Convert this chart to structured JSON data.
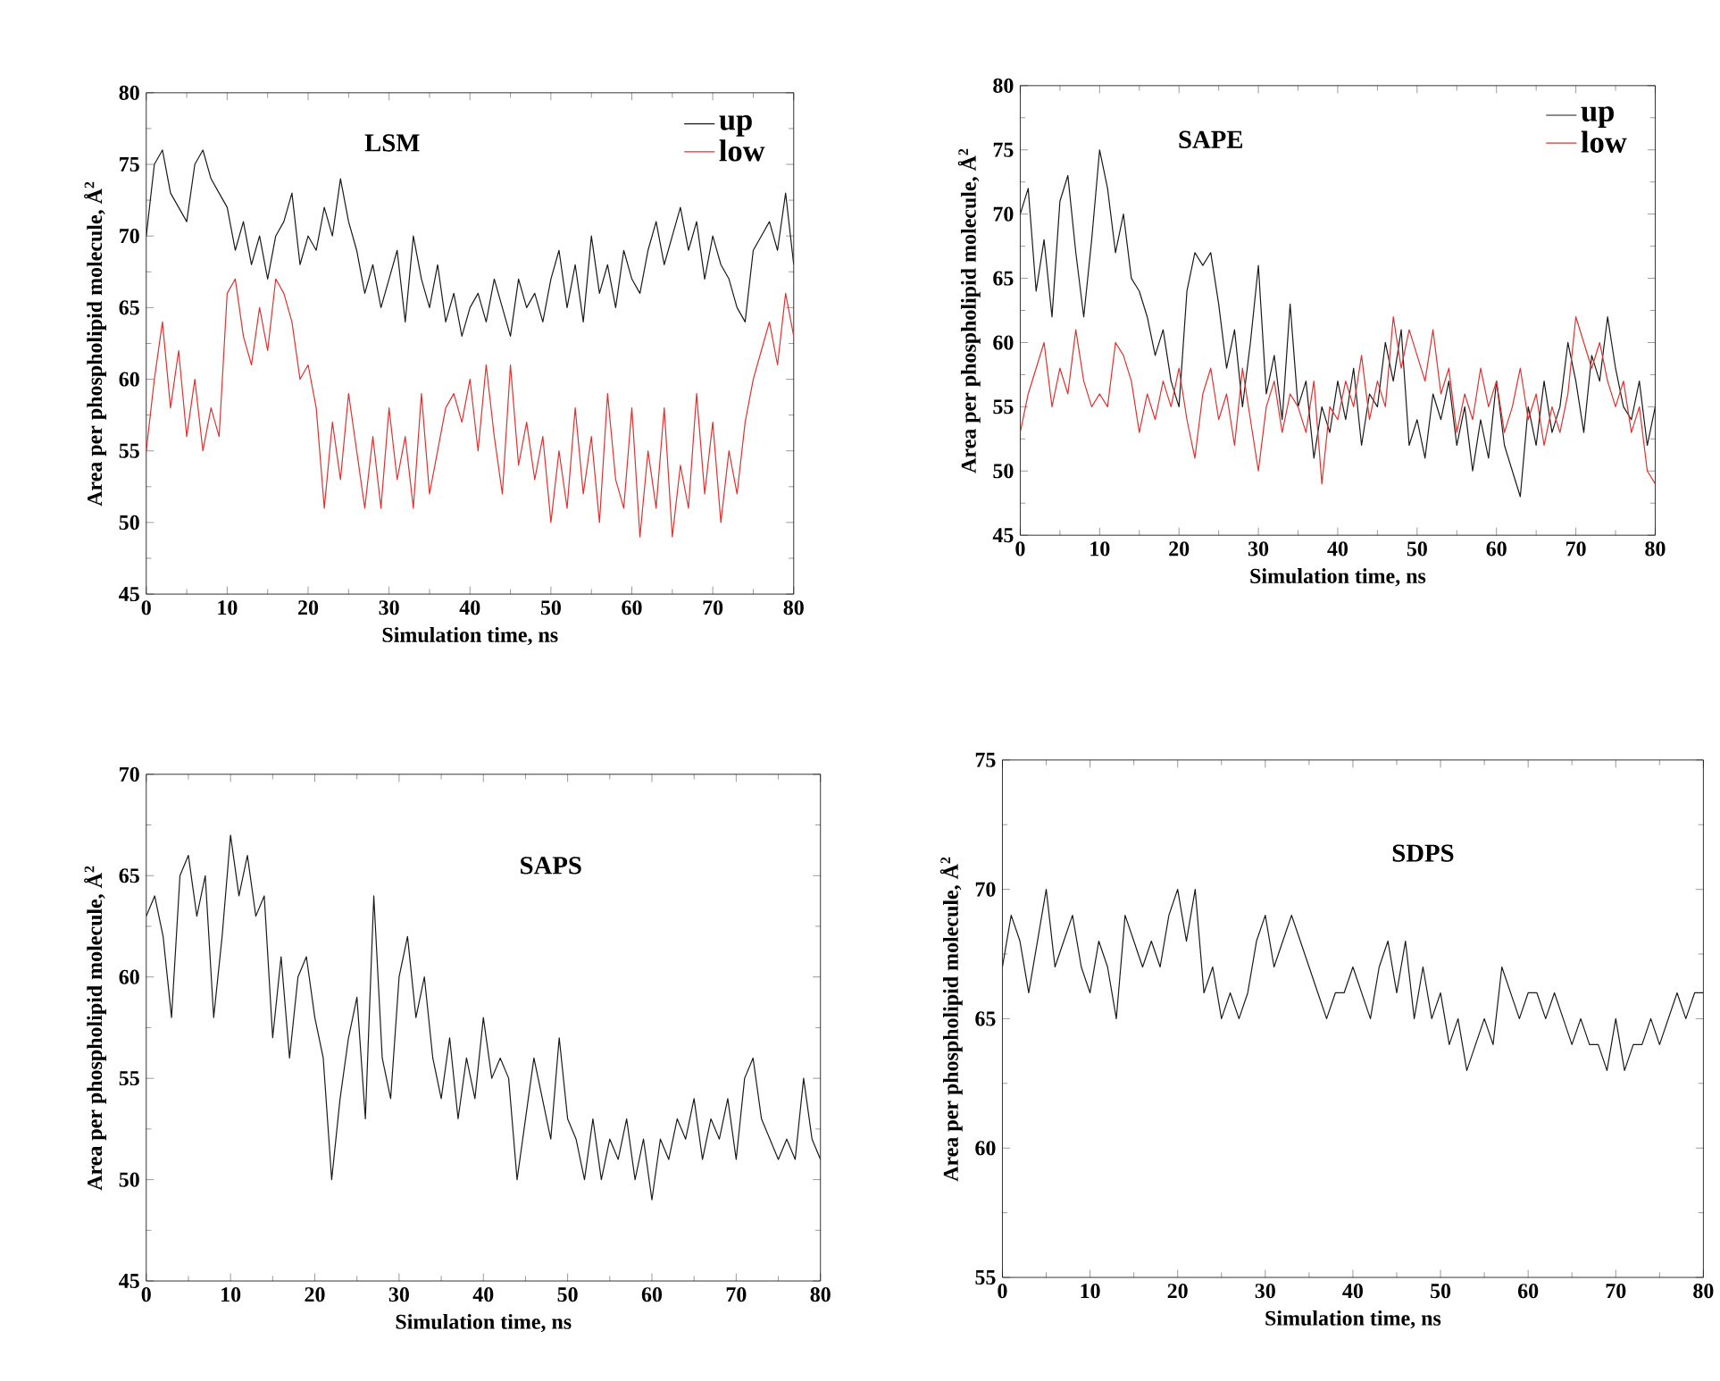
{
  "chart_data": [
    {
      "type": "line",
      "xlabel": "Simulation time, ns",
      "ylabel": "Area per phospholipid molecule, Å$^{2}$",
      "annotations": [
        "LSM"
      ],
      "legend": "top right",
      "xlim": [
        0,
        80
      ],
      "ylim": [
        45,
        80
      ],
      "xticks": [
        0,
        10,
        20,
        30,
        40,
        50,
        60,
        70,
        80
      ],
      "yticks": [
        45,
        50,
        55,
        60,
        65,
        70,
        75,
        80
      ],
      "x": [
        0,
        1,
        2,
        3,
        4,
        5,
        6,
        7,
        8,
        9,
        10,
        11,
        12,
        13,
        14,
        15,
        16,
        17,
        18,
        19,
        20,
        21,
        22,
        23,
        24,
        25,
        26,
        27,
        28,
        29,
        30,
        31,
        32,
        33,
        34,
        35,
        36,
        37,
        38,
        39,
        40,
        41,
        42,
        43,
        44,
        45,
        46,
        47,
        48,
        49,
        50,
        51,
        52,
        53,
        54,
        55,
        56,
        57,
        58,
        59,
        60,
        61,
        62,
        63,
        64,
        65,
        66,
        67,
        68,
        69,
        70,
        71,
        72,
        73,
        74,
        75,
        76,
        77,
        78,
        79,
        80
      ],
      "series": [
        {
          "name": "up",
          "color": "#1a1a1a",
          "values": [
            70,
            75,
            76,
            73,
            72,
            71,
            75,
            76,
            74,
            73,
            72,
            69,
            71,
            68,
            70,
            67,
            70,
            71,
            73,
            68,
            70,
            69,
            72,
            70,
            74,
            71,
            69,
            66,
            68,
            65,
            67,
            69,
            64,
            70,
            67,
            65,
            68,
            64,
            66,
            63,
            65,
            66,
            64,
            67,
            65,
            63,
            67,
            65,
            66,
            64,
            67,
            69,
            65,
            68,
            64,
            70,
            66,
            68,
            65,
            69,
            67,
            66,
            69,
            71,
            68,
            70,
            72,
            69,
            71,
            67,
            70,
            68,
            67,
            65,
            64,
            69,
            70,
            71,
            69,
            73,
            68
          ]
        },
        {
          "name": "low",
          "color": "#e03030",
          "values": [
            55,
            60,
            64,
            58,
            62,
            56,
            60,
            55,
            58,
            56,
            66,
            67,
            63,
            61,
            65,
            62,
            67,
            66,
            64,
            60,
            61,
            58,
            51,
            57,
            53,
            59,
            55,
            51,
            56,
            51,
            58,
            53,
            56,
            51,
            59,
            52,
            55,
            58,
            59,
            57,
            60,
            55,
            61,
            56,
            52,
            61,
            54,
            57,
            53,
            56,
            50,
            55,
            51,
            58,
            52,
            56,
            50,
            59,
            53,
            51,
            58,
            49,
            55,
            51,
            58,
            49,
            54,
            51,
            59,
            52,
            57,
            50,
            55,
            52,
            57,
            60,
            62,
            64,
            61,
            66,
            63
          ]
        }
      ]
    },
    {
      "type": "line",
      "xlabel": "Simulation time, ns",
      "ylabel": "Area per phospholipid molecule, Å$^{2}$",
      "annotations": [
        "SAPE"
      ],
      "legend": "top right",
      "xlim": [
        0,
        80
      ],
      "ylim": [
        45,
        80
      ],
      "xticks": [
        0,
        10,
        20,
        30,
        40,
        50,
        60,
        70,
        80
      ],
      "yticks": [
        45,
        50,
        55,
        60,
        65,
        70,
        75,
        80
      ],
      "x": [
        0,
        1,
        2,
        3,
        4,
        5,
        6,
        7,
        8,
        9,
        10,
        11,
        12,
        13,
        14,
        15,
        16,
        17,
        18,
        19,
        20,
        21,
        22,
        23,
        24,
        25,
        26,
        27,
        28,
        29,
        30,
        31,
        32,
        33,
        34,
        35,
        36,
        37,
        38,
        39,
        40,
        41,
        42,
        43,
        44,
        45,
        46,
        47,
        48,
        49,
        50,
        51,
        52,
        53,
        54,
        55,
        56,
        57,
        58,
        59,
        60,
        61,
        62,
        63,
        64,
        65,
        66,
        67,
        68,
        69,
        70,
        71,
        72,
        73,
        74,
        75,
        76,
        77,
        78,
        79,
        80
      ],
      "series": [
        {
          "name": "up",
          "color": "#1a1a1a",
          "values": [
            70,
            72,
            64,
            68,
            62,
            71,
            73,
            67,
            62,
            68,
            75,
            72,
            67,
            70,
            65,
            64,
            62,
            59,
            61,
            57,
            55,
            64,
            67,
            66,
            67,
            63,
            58,
            61,
            55,
            60,
            66,
            56,
            59,
            54,
            63,
            55,
            57,
            51,
            55,
            53,
            57,
            54,
            58,
            52,
            56,
            55,
            60,
            57,
            61,
            52,
            54,
            51,
            56,
            54,
            57,
            52,
            55,
            50,
            54,
            51,
            57,
            52,
            50,
            48,
            55,
            52,
            57,
            53,
            55,
            60,
            57,
            53,
            59,
            57,
            62,
            58,
            55,
            54,
            57,
            52,
            55
          ]
        },
        {
          "name": "low",
          "color": "#e03030",
          "values": [
            53,
            56,
            58,
            60,
            55,
            58,
            56,
            61,
            57,
            55,
            56,
            55,
            60,
            59,
            57,
            53,
            56,
            54,
            57,
            55,
            58,
            54,
            51,
            56,
            58,
            54,
            56,
            52,
            58,
            54,
            50,
            55,
            57,
            53,
            56,
            55,
            53,
            57,
            49,
            55,
            54,
            57,
            55,
            59,
            54,
            57,
            55,
            62,
            58,
            61,
            59,
            57,
            61,
            56,
            58,
            53,
            56,
            54,
            58,
            55,
            57,
            53,
            55,
            58,
            54,
            56,
            52,
            55,
            53,
            56,
            62,
            60,
            58,
            60,
            57,
            55,
            57,
            53,
            55,
            50,
            49
          ]
        }
      ]
    },
    {
      "type": "line",
      "xlabel": "Simulation time, ns",
      "ylabel": "Area per phospholipid molecule, Å$^{2}$",
      "annotations": [
        "SAPS"
      ],
      "xlim": [
        0,
        80
      ],
      "ylim": [
        45,
        70
      ],
      "xticks": [
        0,
        10,
        20,
        30,
        40,
        50,
        60,
        70,
        80
      ],
      "yticks": [
        45,
        50,
        55,
        60,
        65,
        70
      ],
      "x": [
        0,
        1,
        2,
        3,
        4,
        5,
        6,
        7,
        8,
        9,
        10,
        11,
        12,
        13,
        14,
        15,
        16,
        17,
        18,
        19,
        20,
        21,
        22,
        23,
        24,
        25,
        26,
        27,
        28,
        29,
        30,
        31,
        32,
        33,
        34,
        35,
        36,
        37,
        38,
        39,
        40,
        41,
        42,
        43,
        44,
        45,
        46,
        47,
        48,
        49,
        50,
        51,
        52,
        53,
        54,
        55,
        56,
        57,
        58,
        59,
        60,
        61,
        62,
        63,
        64,
        65,
        66,
        67,
        68,
        69,
        70,
        71,
        72,
        73,
        74,
        75,
        76,
        77,
        78,
        79,
        80
      ],
      "series": [
        {
          "color": "#1a1a1a",
          "values": [
            63,
            64,
            62,
            58,
            65,
            66,
            63,
            65,
            58,
            62,
            67,
            64,
            66,
            63,
            64,
            57,
            61,
            56,
            60,
            61,
            58,
            56,
            50,
            54,
            57,
            59,
            53,
            64,
            56,
            54,
            60,
            62,
            58,
            60,
            56,
            54,
            57,
            53,
            56,
            54,
            58,
            55,
            56,
            55,
            50,
            53,
            56,
            54,
            52,
            57,
            53,
            52,
            50,
            53,
            50,
            52,
            51,
            53,
            50,
            52,
            49,
            52,
            51,
            53,
            52,
            54,
            51,
            53,
            52,
            54,
            51,
            55,
            56,
            53,
            52,
            51,
            52,
            51,
            55,
            52,
            51
          ]
        }
      ]
    },
    {
      "type": "line",
      "xlabel": "Simulation time, ns",
      "ylabel": "Area per phospholipid molecule, Å$^{2}$",
      "annotations": [
        "SDPS"
      ],
      "xlim": [
        0,
        80
      ],
      "ylim": [
        55,
        75
      ],
      "xticks": [
        0,
        10,
        20,
        30,
        40,
        50,
        60,
        70,
        80
      ],
      "yticks": [
        55,
        60,
        65,
        70,
        75
      ],
      "x": [
        0,
        1,
        2,
        3,
        4,
        5,
        6,
        7,
        8,
        9,
        10,
        11,
        12,
        13,
        14,
        15,
        16,
        17,
        18,
        19,
        20,
        21,
        22,
        23,
        24,
        25,
        26,
        27,
        28,
        29,
        30,
        31,
        32,
        33,
        34,
        35,
        36,
        37,
        38,
        39,
        40,
        41,
        42,
        43,
        44,
        45,
        46,
        47,
        48,
        49,
        50,
        51,
        52,
        53,
        54,
        55,
        56,
        57,
        58,
        59,
        60,
        61,
        62,
        63,
        64,
        65,
        66,
        67,
        68,
        69,
        70,
        71,
        72,
        73,
        74,
        75,
        76,
        77,
        78,
        79,
        80
      ],
      "series": [
        {
          "color": "#1a1a1a",
          "values": [
            67,
            69,
            68,
            66,
            68,
            70,
            67,
            68,
            69,
            67,
            66,
            68,
            67,
            65,
            69,
            68,
            67,
            68,
            67,
            69,
            70,
            68,
            70,
            66,
            67,
            65,
            66,
            65,
            66,
            68,
            69,
            67,
            68,
            69,
            68,
            67,
            66,
            65,
            66,
            66,
            67,
            66,
            65,
            67,
            68,
            66,
            68,
            65,
            67,
            65,
            66,
            64,
            65,
            63,
            64,
            65,
            64,
            67,
            66,
            65,
            66,
            66,
            65,
            66,
            65,
            64,
            65,
            64,
            64,
            63,
            65,
            63,
            64,
            64,
            65,
            64,
            65,
            66,
            65,
            66,
            66
          ]
        }
      ]
    }
  ]
}
